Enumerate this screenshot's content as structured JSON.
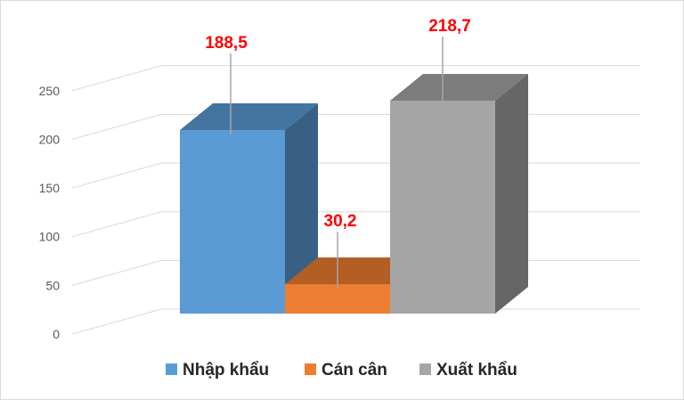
{
  "chart_data": {
    "type": "bar",
    "title": "",
    "xlabel": "",
    "ylabel": "",
    "ylim": [
      0,
      250
    ],
    "y_ticks": [
      "0",
      "50",
      "100",
      "150",
      "200",
      "250"
    ],
    "grid": true,
    "three_d": true,
    "legend_position": "bottom",
    "series": [
      {
        "name": "Nhập khẩu",
        "value": 188.5,
        "label": "188,5",
        "color": "#5b9bd5"
      },
      {
        "name": "Cán cân",
        "value": 30.2,
        "label": "30,2",
        "color": "#ed7d31"
      },
      {
        "name": "Xuất khẩu",
        "value": 218.7,
        "label": "218,7",
        "color": "#a5a5a5"
      }
    ],
    "label_color": "#ff0000"
  }
}
